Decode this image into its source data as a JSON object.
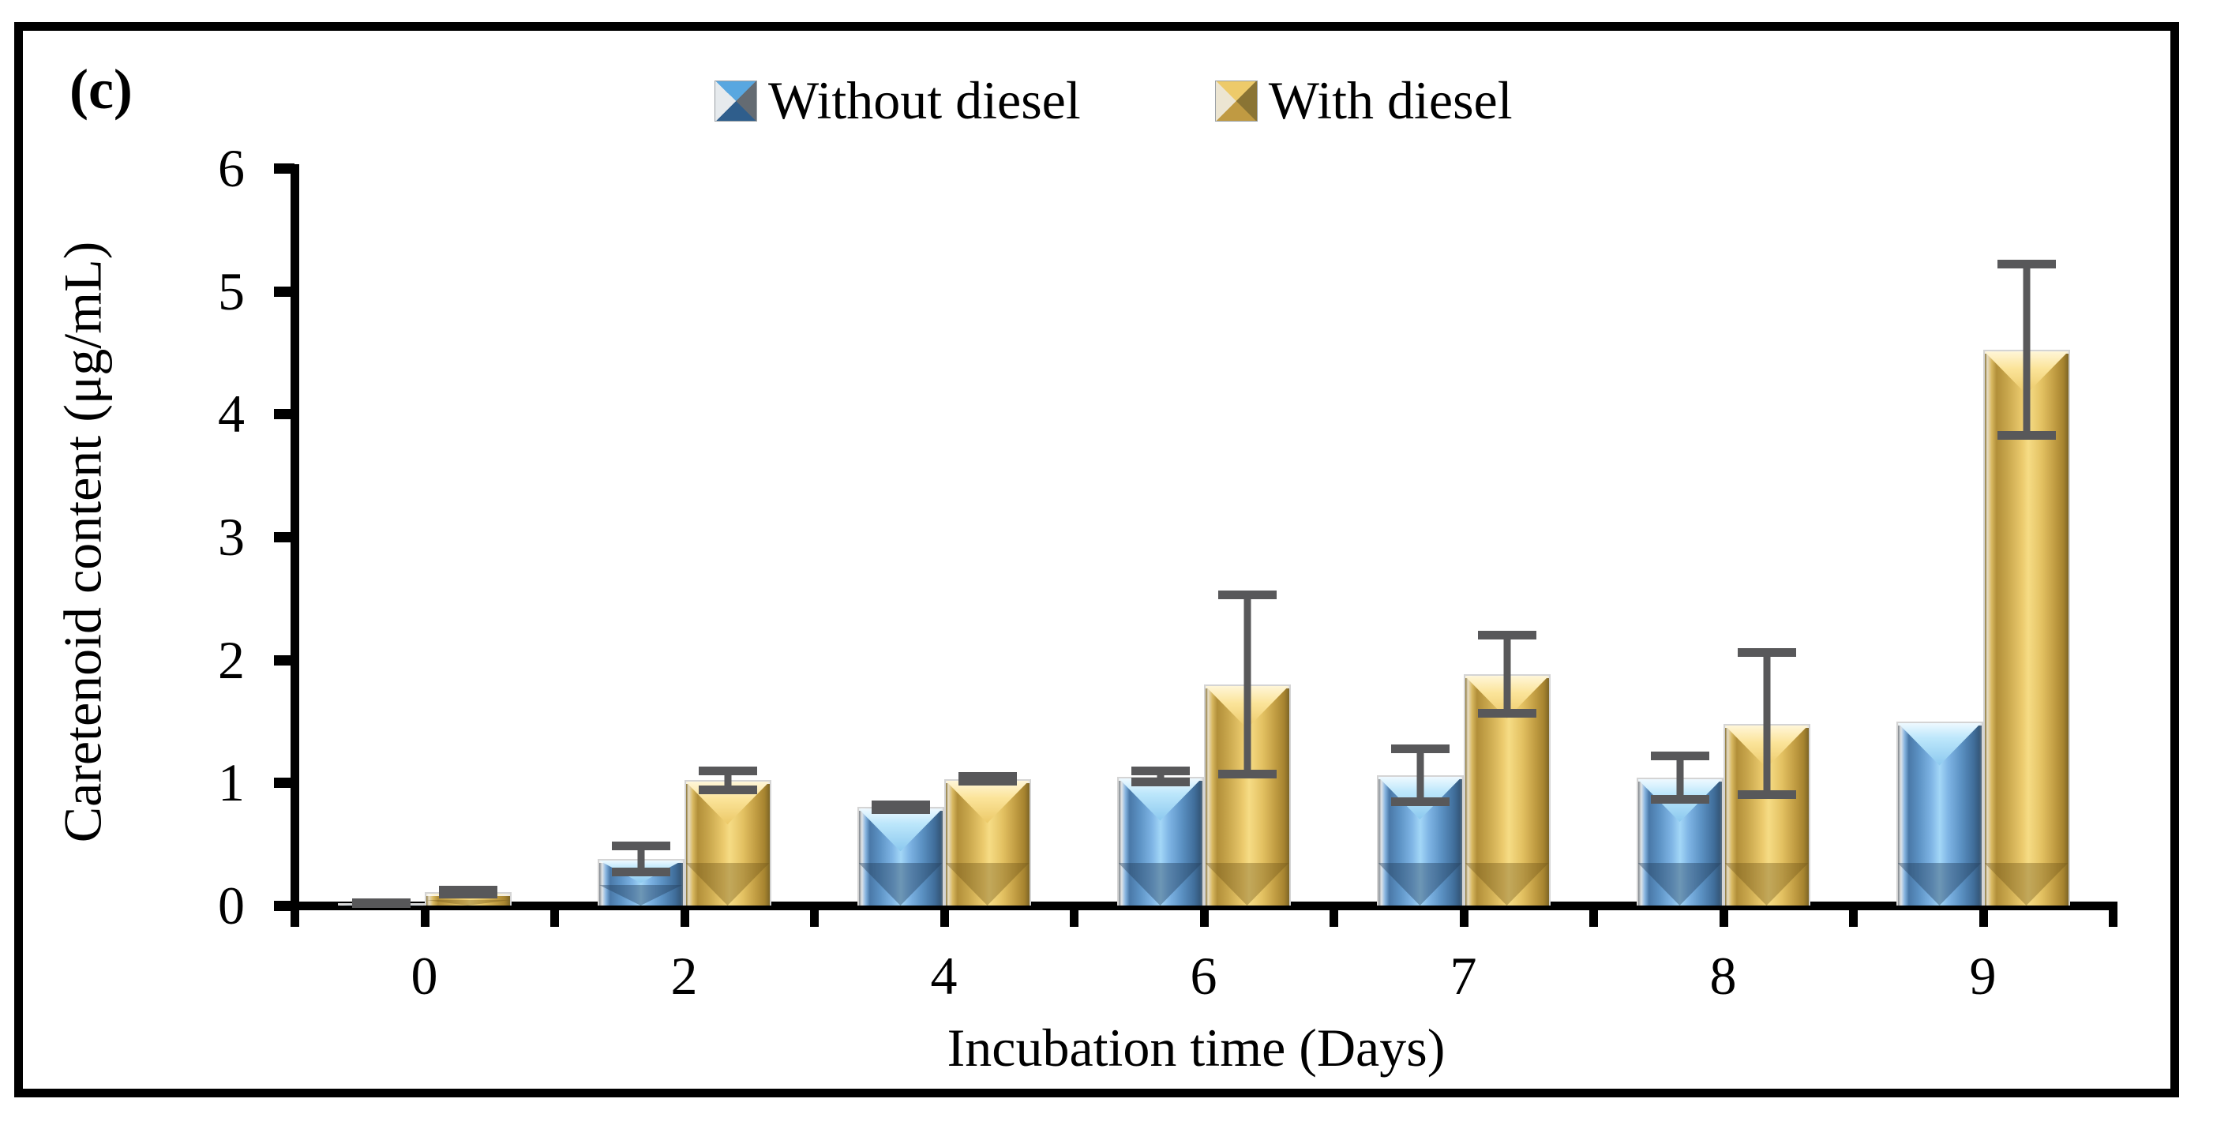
{
  "figure": {
    "panel_label": "(c)"
  },
  "chart_data": {
    "type": "bar",
    "title": "",
    "panel_label": "(c)",
    "xlabel": "Incubation time (Days)",
    "ylabel": "Caretenoid content (μg/mL)",
    "ylim": [
      0,
      6
    ],
    "yticks": [
      "0",
      "1",
      "2",
      "3",
      "4",
      "5",
      "6"
    ],
    "categories": [
      "0",
      "2",
      "4",
      "6",
      "7",
      "8",
      "9"
    ],
    "grid": false,
    "legend_position": "top-center",
    "error_bar_color": "#58585a",
    "series": [
      {
        "name": "Without diesel",
        "color": "#6fa8dc",
        "values": [
          0.02,
          0.38,
          0.8,
          1.05,
          1.06,
          1.04,
          1.5
        ],
        "errors": [
          0.02,
          0.13,
          0.04,
          0.07,
          0.24,
          0.2,
          0
        ]
      },
      {
        "name": "With diesel",
        "color": "#e8c55e",
        "values": [
          0.11,
          1.02,
          1.03,
          1.8,
          1.88,
          1.48,
          4.52
        ],
        "errors": [
          0.04,
          0.1,
          0.04,
          0.75,
          0.34,
          0.6,
          0.72
        ]
      }
    ]
  }
}
